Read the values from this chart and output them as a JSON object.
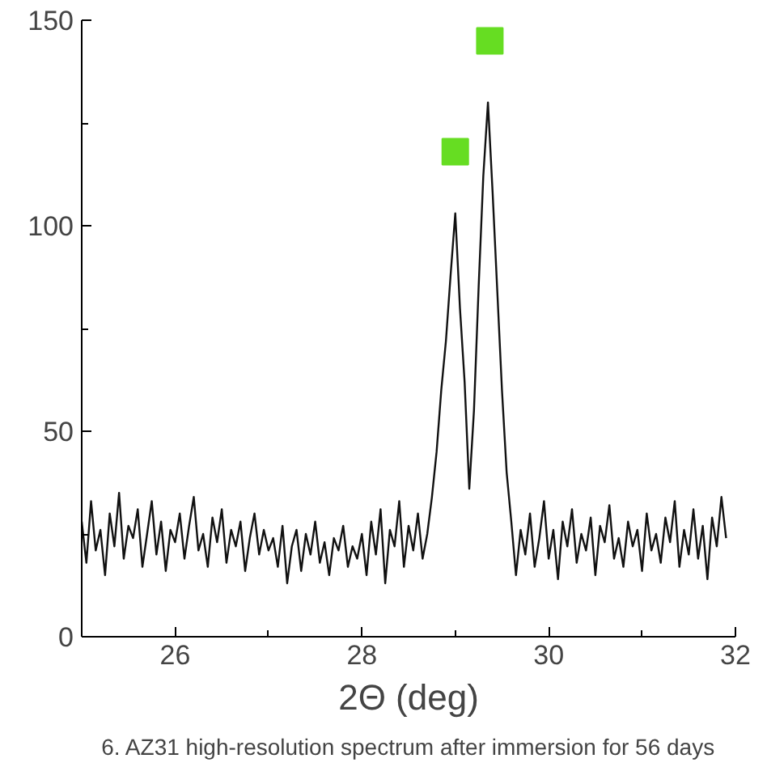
{
  "chart_data": {
    "type": "line",
    "xlabel": "2Θ (deg)",
    "annotations": [
      "6. AZ31 high-resolution spectrum after immersion for 56 days"
    ],
    "xlim": [
      25,
      32
    ],
    "ylim": [
      0,
      150
    ],
    "xticks": [
      {
        "value": 25,
        "label": null
      },
      26,
      {
        "value": 27,
        "label": null
      },
      28,
      {
        "value": 29,
        "label": null
      },
      30,
      {
        "value": 31,
        "label": null
      },
      32
    ],
    "yticks": [
      0,
      {
        "value": 25,
        "label": null
      },
      50,
      {
        "value": 75,
        "label": null
      },
      100,
      {
        "value": 125,
        "label": null
      },
      150
    ],
    "grid": false,
    "series": [
      {
        "color": "#111111",
        "line_style": "solid",
        "marker": "none",
        "x": [
          25.0,
          25.05,
          25.1,
          25.15,
          25.2,
          25.25,
          25.3,
          25.35,
          25.4,
          25.45,
          25.5,
          25.55,
          25.6,
          25.65,
          25.7,
          25.75,
          25.8,
          25.85,
          25.9,
          25.95,
          26.0,
          26.05,
          26.1,
          26.15,
          26.2,
          26.25,
          26.3,
          26.35,
          26.4,
          26.45,
          26.5,
          26.55,
          26.6,
          26.65,
          26.7,
          26.75,
          26.8,
          26.85,
          26.9,
          26.95,
          27.0,
          27.05,
          27.1,
          27.15,
          27.2,
          27.25,
          27.3,
          27.35,
          27.4,
          27.45,
          27.5,
          27.55,
          27.6,
          27.65,
          27.7,
          27.75,
          27.8,
          27.85,
          27.9,
          27.95,
          28.0,
          28.05,
          28.1,
          28.15,
          28.2,
          28.25,
          28.3,
          28.35,
          28.4,
          28.45,
          28.5,
          28.55,
          28.6,
          28.65,
          28.7,
          28.75,
          28.8,
          28.85,
          28.9,
          28.95,
          29.0,
          29.05,
          29.1,
          29.15,
          29.2,
          29.25,
          29.3,
          29.35,
          29.4,
          29.45,
          29.5,
          29.55,
          29.6,
          29.65,
          29.7,
          29.75,
          29.8,
          29.85,
          29.9,
          29.95,
          30.0,
          30.05,
          30.1,
          30.15,
          30.2,
          30.25,
          30.3,
          30.35,
          30.4,
          30.45,
          30.5,
          30.55,
          30.6,
          30.65,
          30.7,
          30.75,
          30.8,
          30.85,
          30.9,
          30.95,
          31.0,
          31.05,
          31.1,
          31.15,
          31.2,
          31.25,
          31.3,
          31.35,
          31.4,
          31.45,
          31.5,
          31.55,
          31.6,
          31.65,
          31.7,
          31.75,
          31.8,
          31.85,
          31.9
        ],
        "values": [
          28,
          18,
          33,
          21,
          26,
          15,
          30,
          22,
          35,
          19,
          27,
          24,
          31,
          17,
          25,
          33,
          20,
          28,
          16,
          26,
          23,
          30,
          19,
          27,
          34,
          21,
          25,
          17,
          29,
          23,
          31,
          18,
          26,
          22,
          28,
          16,
          24,
          30,
          20,
          26,
          21,
          24,
          17,
          27,
          13,
          22,
          26,
          16,
          25,
          20,
          28,
          18,
          23,
          15,
          24,
          21,
          27,
          17,
          22,
          19,
          25,
          15,
          28,
          20,
          31,
          13,
          26,
          22,
          33,
          17,
          27,
          21,
          30,
          19,
          25,
          34,
          45,
          60,
          72,
          88,
          103,
          80,
          62,
          36,
          55,
          85,
          112,
          130,
          108,
          84,
          60,
          40,
          28,
          15,
          26,
          20,
          30,
          17,
          24,
          33,
          19,
          26,
          14,
          28,
          22,
          31,
          18,
          25,
          21,
          29,
          15,
          27,
          23,
          32,
          19,
          24,
          17,
          28,
          22,
          26,
          16,
          30,
          21,
          25,
          18,
          29,
          23,
          33,
          17,
          26,
          20,
          31,
          19,
          27,
          14,
          29,
          22,
          34,
          24
        ]
      },
      {
        "type": "scatter",
        "color": "#66dd22",
        "marker": "square",
        "x": [
          29.0,
          29.37
        ],
        "values": [
          118,
          145
        ]
      }
    ]
  }
}
